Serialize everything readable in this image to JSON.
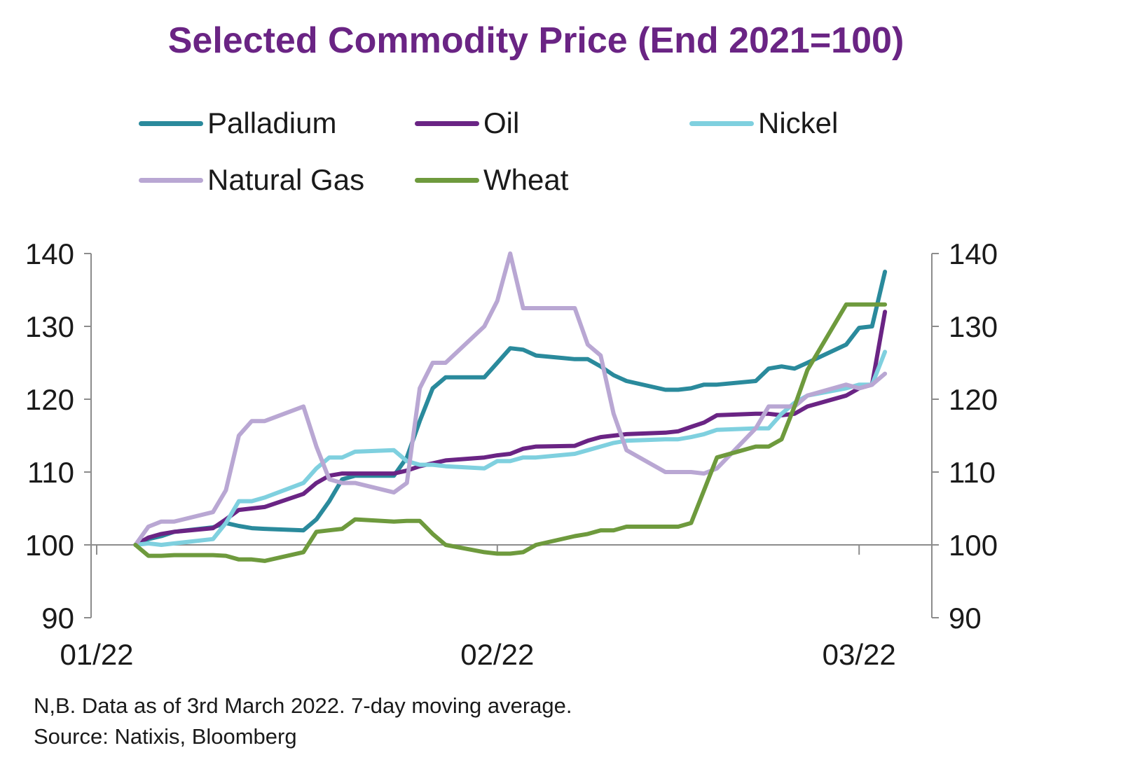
{
  "title": "Selected Commodity Price (End 2021=100)",
  "notes": {
    "line1": "N,B. Data as of 3rd March 2022. 7-day moving average.",
    "line2": "Source: Natixis, Bloomberg"
  },
  "chart_data": {
    "type": "line",
    "title": "Selected Commodity Price (End 2021=100)",
    "xlabel": "",
    "ylabel": "",
    "ylim": [
      90,
      140
    ],
    "y_ticks": [
      90,
      100,
      110,
      120,
      130,
      140
    ],
    "y_tick_labels": [
      "90",
      "100",
      "110",
      "120",
      "130",
      "140"
    ],
    "x_tick_labels": [
      "01/22",
      "02/22",
      "03/22"
    ],
    "x_tick_dates": [
      "2022-01-01",
      "2022-02-01",
      "2022-03-01"
    ],
    "xlim": [
      "2022-01-01",
      "2022-03-05"
    ],
    "secondary_y_axis": true,
    "baseline": 100,
    "grid": false,
    "legend_position": "top",
    "series": [
      {
        "name": "Palladium",
        "color": "#2a8a9c",
        "x": [
          "2022-01-04",
          "2022-01-05",
          "2022-01-06",
          "2022-01-07",
          "2022-01-10",
          "2022-01-11",
          "2022-01-12",
          "2022-01-13",
          "2022-01-14",
          "2022-01-17",
          "2022-01-18",
          "2022-01-19",
          "2022-01-20",
          "2022-01-21",
          "2022-01-24",
          "2022-01-25",
          "2022-01-26",
          "2022-01-27",
          "2022-01-28",
          "2022-01-31",
          "2022-02-01",
          "2022-02-02",
          "2022-02-03",
          "2022-02-04",
          "2022-02-07",
          "2022-02-08",
          "2022-02-09",
          "2022-02-10",
          "2022-02-11",
          "2022-02-14",
          "2022-02-15",
          "2022-02-16",
          "2022-02-17",
          "2022-02-18",
          "2022-02-21",
          "2022-02-22",
          "2022-02-23",
          "2022-02-24",
          "2022-02-25",
          "2022-02-28",
          "2022-03-01",
          "2022-03-02",
          "2022-03-03"
        ],
        "values": [
          100,
          100.8,
          101.2,
          101.8,
          102.4,
          103.0,
          102.6,
          102.3,
          102.2,
          102.0,
          103.5,
          106.0,
          109.0,
          109.5,
          109.5,
          112.0,
          117.0,
          121.5,
          123.0,
          123.0,
          125.0,
          127.0,
          126.8,
          126.0,
          125.5,
          125.5,
          124.5,
          123.3,
          122.5,
          121.3,
          121.3,
          121.5,
          122.0,
          122.0,
          122.5,
          124.2,
          124.5,
          124.2,
          125.0,
          127.5,
          129.8,
          130.0,
          137.5
        ]
      },
      {
        "name": "Oil",
        "color": "#6a2484",
        "x": [
          "2022-01-04",
          "2022-01-05",
          "2022-01-06",
          "2022-01-07",
          "2022-01-10",
          "2022-01-11",
          "2022-01-12",
          "2022-01-13",
          "2022-01-14",
          "2022-01-17",
          "2022-01-18",
          "2022-01-19",
          "2022-01-20",
          "2022-01-21",
          "2022-01-24",
          "2022-01-25",
          "2022-01-26",
          "2022-01-27",
          "2022-01-28",
          "2022-01-31",
          "2022-02-01",
          "2022-02-02",
          "2022-02-03",
          "2022-02-04",
          "2022-02-07",
          "2022-02-08",
          "2022-02-09",
          "2022-02-10",
          "2022-02-11",
          "2022-02-14",
          "2022-02-15",
          "2022-02-16",
          "2022-02-17",
          "2022-02-18",
          "2022-02-21",
          "2022-02-22",
          "2022-02-23",
          "2022-02-24",
          "2022-02-25",
          "2022-02-28",
          "2022-03-01",
          "2022-03-02",
          "2022-03-03"
        ],
        "values": [
          100,
          101.0,
          101.5,
          101.8,
          102.3,
          103.5,
          104.8,
          105.0,
          105.2,
          107.0,
          108.5,
          109.5,
          109.8,
          109.8,
          109.8,
          110.2,
          110.8,
          111.2,
          111.6,
          112.0,
          112.3,
          112.5,
          113.2,
          113.5,
          113.6,
          114.3,
          114.8,
          115.0,
          115.2,
          115.4,
          115.6,
          116.2,
          116.8,
          117.8,
          118.0,
          118.0,
          117.8,
          118.0,
          119.0,
          120.5,
          121.5,
          122.0,
          132.0
        ]
      },
      {
        "name": "Nickel",
        "color": "#7fd0df",
        "x": [
          "2022-01-04",
          "2022-01-05",
          "2022-01-06",
          "2022-01-07",
          "2022-01-10",
          "2022-01-11",
          "2022-01-12",
          "2022-01-13",
          "2022-01-14",
          "2022-01-17",
          "2022-01-18",
          "2022-01-19",
          "2022-01-20",
          "2022-01-21",
          "2022-01-24",
          "2022-01-25",
          "2022-01-26",
          "2022-01-27",
          "2022-01-28",
          "2022-01-31",
          "2022-02-01",
          "2022-02-02",
          "2022-02-03",
          "2022-02-04",
          "2022-02-07",
          "2022-02-08",
          "2022-02-09",
          "2022-02-10",
          "2022-02-11",
          "2022-02-14",
          "2022-02-15",
          "2022-02-16",
          "2022-02-17",
          "2022-02-18",
          "2022-02-21",
          "2022-02-22",
          "2022-02-23",
          "2022-02-24",
          "2022-02-25",
          "2022-02-28",
          "2022-03-01",
          "2022-03-02",
          "2022-03-03"
        ],
        "values": [
          100,
          100.2,
          100.0,
          100.2,
          100.8,
          103.0,
          106.0,
          106.0,
          106.5,
          108.5,
          110.5,
          112.0,
          112.0,
          112.8,
          113.0,
          111.5,
          111.0,
          111.0,
          110.8,
          110.5,
          111.5,
          111.5,
          112.0,
          112.0,
          112.5,
          113.0,
          113.5,
          114.0,
          114.3,
          114.5,
          114.5,
          114.8,
          115.2,
          115.8,
          116.0,
          116.0,
          118.0,
          119.5,
          120.5,
          121.5,
          122.0,
          122.0,
          126.5
        ]
      },
      {
        "name": "Natural Gas",
        "color": "#b9a7d3",
        "x": [
          "2022-01-04",
          "2022-01-05",
          "2022-01-06",
          "2022-01-07",
          "2022-01-10",
          "2022-01-11",
          "2022-01-12",
          "2022-01-13",
          "2022-01-14",
          "2022-01-17",
          "2022-01-18",
          "2022-01-19",
          "2022-01-20",
          "2022-01-21",
          "2022-01-24",
          "2022-01-25",
          "2022-01-26",
          "2022-01-27",
          "2022-01-28",
          "2022-01-31",
          "2022-02-01",
          "2022-02-02",
          "2022-02-03",
          "2022-02-04",
          "2022-02-07",
          "2022-02-08",
          "2022-02-09",
          "2022-02-10",
          "2022-02-11",
          "2022-02-14",
          "2022-02-15",
          "2022-02-16",
          "2022-02-17",
          "2022-02-18",
          "2022-02-21",
          "2022-02-22",
          "2022-02-23",
          "2022-02-24",
          "2022-02-25",
          "2022-02-28",
          "2022-03-01",
          "2022-03-02",
          "2022-03-03"
        ],
        "values": [
          100,
          102.5,
          103.2,
          103.2,
          104.5,
          107.5,
          115.0,
          117.0,
          117.0,
          119.0,
          113.5,
          109.0,
          108.5,
          108.5,
          107.2,
          108.5,
          121.5,
          125.0,
          125.0,
          130.0,
          133.5,
          140.0,
          132.5,
          132.5,
          132.5,
          127.5,
          126.0,
          118.0,
          113.0,
          110.0,
          110.0,
          110.0,
          109.8,
          110.5,
          116.0,
          119.0,
          119.0,
          119.0,
          120.5,
          122.0,
          121.5,
          122.0,
          123.5
        ]
      },
      {
        "name": "Wheat",
        "color": "#6e9a3d",
        "x": [
          "2022-01-04",
          "2022-01-05",
          "2022-01-06",
          "2022-01-07",
          "2022-01-10",
          "2022-01-11",
          "2022-01-12",
          "2022-01-13",
          "2022-01-14",
          "2022-01-17",
          "2022-01-18",
          "2022-01-19",
          "2022-01-20",
          "2022-01-21",
          "2022-01-24",
          "2022-01-25",
          "2022-01-26",
          "2022-01-27",
          "2022-01-28",
          "2022-01-31",
          "2022-02-01",
          "2022-02-02",
          "2022-02-03",
          "2022-02-04",
          "2022-02-07",
          "2022-02-08",
          "2022-02-09",
          "2022-02-10",
          "2022-02-11",
          "2022-02-14",
          "2022-02-15",
          "2022-02-16",
          "2022-02-17",
          "2022-02-18",
          "2022-02-21",
          "2022-02-22",
          "2022-02-23",
          "2022-02-24",
          "2022-02-25",
          "2022-02-28",
          "2022-03-01",
          "2022-03-02",
          "2022-03-03"
        ],
        "values": [
          100,
          98.5,
          98.5,
          98.6,
          98.6,
          98.5,
          98.0,
          98.0,
          97.8,
          99.0,
          101.8,
          102.0,
          102.2,
          103.5,
          103.2,
          103.3,
          103.3,
          101.5,
          100.0,
          99.0,
          98.8,
          98.8,
          99.0,
          100.0,
          101.2,
          101.5,
          102.0,
          102.0,
          102.5,
          102.5,
          102.5,
          103.0,
          107.5,
          112.0,
          113.5,
          113.5,
          114.5,
          119.0,
          124.0,
          133.0,
          133.0,
          133.0,
          133.0
        ]
      }
    ]
  }
}
